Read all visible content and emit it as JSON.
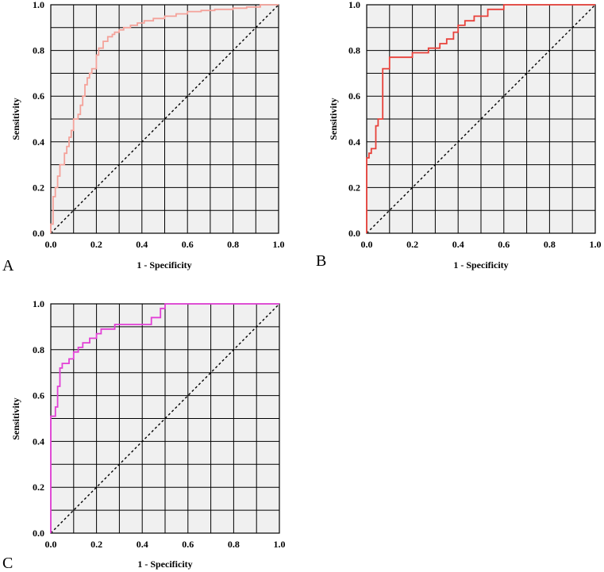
{
  "chart_data": [
    {
      "panel": "A",
      "type": "line",
      "title": "",
      "xlabel": "1 - Specificity",
      "ylabel": "Sensitivity",
      "xlim": [
        0,
        1
      ],
      "ylim": [
        0,
        1
      ],
      "xticks": [
        "0.0",
        "0.2",
        "0.4",
        "0.6",
        "0.8",
        "1.0"
      ],
      "yticks": [
        "0.0",
        "0.2",
        "0.4",
        "0.6",
        "0.8",
        "1.0"
      ],
      "grid": true,
      "reference_line": {
        "style": "dashed",
        "color": "#000000",
        "x": [
          0,
          1
        ],
        "y": [
          0,
          1
        ]
      },
      "series": [
        {
          "color": "#f4a29a",
          "x": [
            0.0,
            0.0,
            0.01,
            0.01,
            0.02,
            0.02,
            0.03,
            0.03,
            0.04,
            0.04,
            0.06,
            0.06,
            0.07,
            0.07,
            0.08,
            0.08,
            0.09,
            0.09,
            0.1,
            0.1,
            0.12,
            0.12,
            0.13,
            0.13,
            0.14,
            0.14,
            0.15,
            0.15,
            0.16,
            0.16,
            0.17,
            0.17,
            0.18,
            0.18,
            0.2,
            0.2,
            0.21,
            0.21,
            0.23,
            0.23,
            0.25,
            0.25,
            0.27,
            0.27,
            0.28,
            0.28,
            0.3,
            0.3,
            0.32,
            0.32,
            0.35,
            0.35,
            0.38,
            0.38,
            0.41,
            0.41,
            0.45,
            0.45,
            0.5,
            0.5,
            0.55,
            0.55,
            0.6,
            0.6,
            0.66,
            0.66,
            0.72,
            0.72,
            0.8,
            0.8,
            0.86,
            0.86,
            0.92,
            0.92,
            1.0
          ],
          "y": [
            0.0,
            0.04,
            0.04,
            0.16,
            0.16,
            0.2,
            0.2,
            0.25,
            0.25,
            0.3,
            0.3,
            0.35,
            0.35,
            0.38,
            0.38,
            0.42,
            0.42,
            0.45,
            0.45,
            0.5,
            0.5,
            0.52,
            0.52,
            0.56,
            0.56,
            0.6,
            0.6,
            0.65,
            0.65,
            0.68,
            0.68,
            0.7,
            0.7,
            0.72,
            0.72,
            0.78,
            0.78,
            0.81,
            0.81,
            0.84,
            0.84,
            0.86,
            0.86,
            0.87,
            0.87,
            0.88,
            0.88,
            0.89,
            0.89,
            0.9,
            0.9,
            0.91,
            0.91,
            0.92,
            0.92,
            0.93,
            0.93,
            0.94,
            0.94,
            0.95,
            0.95,
            0.96,
            0.96,
            0.97,
            0.97,
            0.975,
            0.975,
            0.98,
            0.98,
            0.985,
            0.985,
            0.99,
            0.99,
            1.0,
            1.0
          ]
        }
      ]
    },
    {
      "panel": "B",
      "type": "line",
      "title": "",
      "xlabel": "1 - Specificity",
      "ylabel": "Sensitivity",
      "xlim": [
        0,
        1
      ],
      "ylim": [
        0,
        1
      ],
      "xticks": [
        "0.0",
        "0.2",
        "0.4",
        "0.6",
        "0.8",
        "1.0"
      ],
      "yticks": [
        "0.0",
        "0.2",
        "0.4",
        "0.6",
        "0.8",
        "1.0"
      ],
      "grid": true,
      "reference_line": {
        "style": "dashed",
        "color": "#000000",
        "x": [
          0,
          1
        ],
        "y": [
          0,
          1
        ]
      },
      "series": [
        {
          "color": "#e8413a",
          "x": [
            0.0,
            0.0,
            0.0,
            0.01,
            0.01,
            0.02,
            0.02,
            0.04,
            0.04,
            0.05,
            0.05,
            0.07,
            0.07,
            0.1,
            0.1,
            0.2,
            0.2,
            0.27,
            0.27,
            0.32,
            0.32,
            0.35,
            0.35,
            0.38,
            0.38,
            0.4,
            0.4,
            0.43,
            0.43,
            0.47,
            0.47,
            0.53,
            0.53,
            0.6,
            0.6,
            1.0
          ],
          "y": [
            0.0,
            0.1,
            0.33,
            0.33,
            0.35,
            0.35,
            0.37,
            0.37,
            0.47,
            0.47,
            0.5,
            0.5,
            0.72,
            0.72,
            0.77,
            0.77,
            0.79,
            0.79,
            0.81,
            0.81,
            0.83,
            0.83,
            0.85,
            0.85,
            0.88,
            0.88,
            0.91,
            0.91,
            0.93,
            0.93,
            0.95,
            0.95,
            0.98,
            0.98,
            1.0,
            1.0
          ]
        }
      ]
    },
    {
      "panel": "C",
      "type": "line",
      "title": "",
      "xlabel": "1 - Specificity",
      "ylabel": "Sensitivity",
      "xlim": [
        0,
        1
      ],
      "ylim": [
        0,
        1
      ],
      "xticks": [
        "0.0",
        "0.2",
        "0.4",
        "0.6",
        "0.8",
        "1.0"
      ],
      "yticks": [
        "0.0",
        "0.2",
        "0.4",
        "0.6",
        "0.8",
        "1.0"
      ],
      "grid": true,
      "reference_line": {
        "style": "dashed",
        "color": "#000000",
        "x": [
          0,
          1
        ],
        "y": [
          0,
          1
        ]
      },
      "series": [
        {
          "color": "#e23fd6",
          "x": [
            0.0,
            0.0,
            0.02,
            0.02,
            0.03,
            0.03,
            0.04,
            0.04,
            0.05,
            0.05,
            0.08,
            0.08,
            0.1,
            0.1,
            0.12,
            0.12,
            0.14,
            0.14,
            0.17,
            0.17,
            0.2,
            0.2,
            0.22,
            0.22,
            0.28,
            0.28,
            0.44,
            0.44,
            0.48,
            0.48,
            0.5,
            0.5,
            1.0
          ],
          "y": [
            0.0,
            0.51,
            0.51,
            0.55,
            0.55,
            0.64,
            0.64,
            0.72,
            0.72,
            0.74,
            0.74,
            0.76,
            0.76,
            0.79,
            0.79,
            0.81,
            0.81,
            0.83,
            0.83,
            0.85,
            0.85,
            0.87,
            0.87,
            0.89,
            0.89,
            0.91,
            0.91,
            0.94,
            0.94,
            0.98,
            0.98,
            1.0,
            1.0
          ]
        }
      ]
    }
  ]
}
